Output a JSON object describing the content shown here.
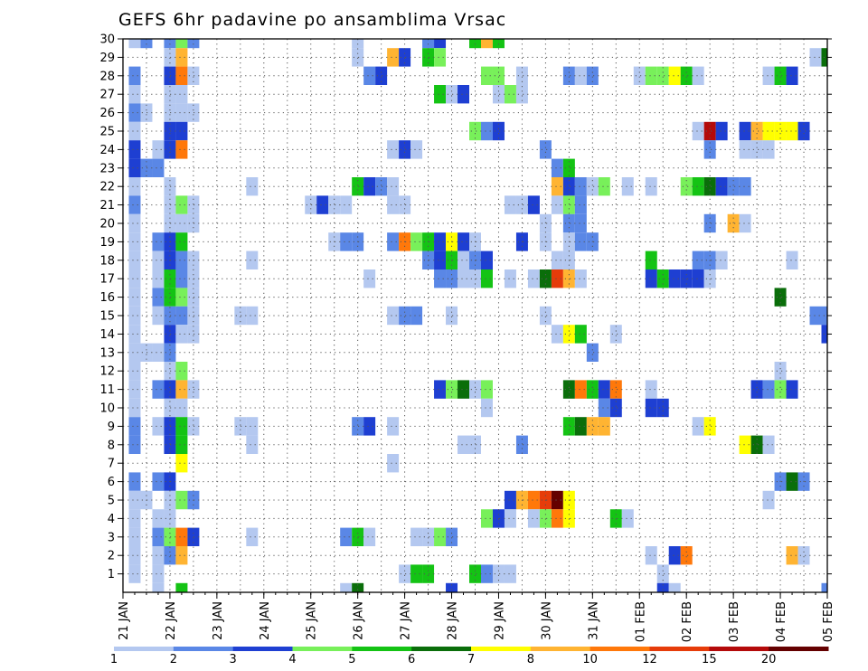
{
  "chart_data": {
    "type": "heatmap",
    "title": "GEFS 6hr padavine po ansamblima Vrsac",
    "xlabel": "",
    "ylabel": "",
    "x_tick_labels": [
      "21 JAN",
      "22 JAN",
      "23 JAN",
      "24 JAN",
      "25 JAN",
      "26 JAN",
      "27 JAN",
      "28 JAN",
      "29 JAN",
      "30 JAN",
      "31 JAN",
      "01 FEB",
      "02 FEB",
      "03 FEB",
      "04 FEB",
      "05 FEB"
    ],
    "y_tick_labels": [
      "1",
      "2",
      "3",
      "4",
      "5",
      "6",
      "7",
      "8",
      "9",
      "10",
      "11",
      "12",
      "13",
      "14",
      "15",
      "16",
      "17",
      "18",
      "19",
      "20",
      "21",
      "22",
      "23",
      "24",
      "25",
      "26",
      "27",
      "28",
      "29",
      "30"
    ],
    "x_range_steps": [
      0,
      60
    ],
    "y_range_members": [
      0,
      30
    ],
    "grid": true,
    "colorbar": {
      "levels": [
        "1",
        "2",
        "3",
        "4",
        "5",
        "6",
        "7",
        "8",
        "10",
        "12",
        "15",
        "20"
      ],
      "colors": [
        "#b4c8f0",
        "#5a87e6",
        "#1e3fd2",
        "#78f05a",
        "#14c314",
        "#0a6e0a",
        "#ffff00",
        "#ffb432",
        "#ff780a",
        "#e63c0a",
        "#b40a0a",
        "#640000"
      ]
    },
    "cells_format": "[member, time_step, class_index]",
    "cells": [
      [
        30,
        1,
        0
      ],
      [
        30,
        2,
        1
      ],
      [
        30,
        4,
        1
      ],
      [
        30,
        5,
        3
      ],
      [
        30,
        6,
        1
      ],
      [
        30,
        20,
        0
      ],
      [
        30,
        26,
        1
      ],
      [
        30,
        27,
        2
      ],
      [
        30,
        30,
        4
      ],
      [
        30,
        31,
        7
      ],
      [
        30,
        32,
        4
      ],
      [
        29,
        4,
        0
      ],
      [
        29,
        5,
        7
      ],
      [
        29,
        20,
        0
      ],
      [
        29,
        23,
        7
      ],
      [
        29,
        24,
        2
      ],
      [
        29,
        26,
        4
      ],
      [
        29,
        27,
        3
      ],
      [
        29,
        59,
        0
      ],
      [
        29,
        60,
        5
      ],
      [
        28,
        1,
        1
      ],
      [
        28,
        4,
        2
      ],
      [
        28,
        5,
        8
      ],
      [
        28,
        6,
        0
      ],
      [
        28,
        21,
        1
      ],
      [
        28,
        22,
        2
      ],
      [
        28,
        31,
        3
      ],
      [
        28,
        32,
        3
      ],
      [
        28,
        34,
        0
      ],
      [
        28,
        38,
        1
      ],
      [
        28,
        39,
        0
      ],
      [
        28,
        40,
        1
      ],
      [
        28,
        44,
        0
      ],
      [
        28,
        45,
        3
      ],
      [
        28,
        46,
        3
      ],
      [
        28,
        47,
        6
      ],
      [
        28,
        48,
        4
      ],
      [
        28,
        49,
        0
      ],
      [
        28,
        55,
        0
      ],
      [
        28,
        56,
        4
      ],
      [
        28,
        57,
        2
      ],
      [
        27,
        1,
        0
      ],
      [
        27,
        4,
        0
      ],
      [
        27,
        5,
        0
      ],
      [
        27,
        27,
        4
      ],
      [
        27,
        28,
        0
      ],
      [
        27,
        29,
        2
      ],
      [
        27,
        32,
        0
      ],
      [
        27,
        33,
        3
      ],
      [
        27,
        34,
        0
      ],
      [
        26,
        1,
        1
      ],
      [
        26,
        2,
        0
      ],
      [
        26,
        4,
        0
      ],
      [
        26,
        5,
        0
      ],
      [
        26,
        6,
        0
      ],
      [
        25,
        1,
        0
      ],
      [
        25,
        4,
        2
      ],
      [
        25,
        5,
        2
      ],
      [
        25,
        30,
        3
      ],
      [
        25,
        31,
        1
      ],
      [
        25,
        32,
        2
      ],
      [
        25,
        49,
        0
      ],
      [
        25,
        50,
        10
      ],
      [
        25,
        51,
        2
      ],
      [
        25,
        53,
        2
      ],
      [
        25,
        54,
        7
      ],
      [
        25,
        55,
        6
      ],
      [
        25,
        56,
        6
      ],
      [
        25,
        57,
        6
      ],
      [
        25,
        58,
        2
      ],
      [
        24,
        1,
        2
      ],
      [
        24,
        3,
        0
      ],
      [
        24,
        4,
        2
      ],
      [
        24,
        5,
        8
      ],
      [
        24,
        23,
        0
      ],
      [
        24,
        24,
        2
      ],
      [
        24,
        25,
        0
      ],
      [
        24,
        36,
        1
      ],
      [
        24,
        50,
        1
      ],
      [
        24,
        53,
        0
      ],
      [
        24,
        54,
        0
      ],
      [
        24,
        55,
        0
      ],
      [
        23,
        1,
        2
      ],
      [
        23,
        2,
        1
      ],
      [
        23,
        3,
        1
      ],
      [
        23,
        37,
        1
      ],
      [
        23,
        38,
        4
      ],
      [
        22,
        1,
        0
      ],
      [
        22,
        4,
        0
      ],
      [
        22,
        11,
        0
      ],
      [
        22,
        20,
        4
      ],
      [
        22,
        21,
        2
      ],
      [
        22,
        22,
        1
      ],
      [
        22,
        23,
        0
      ],
      [
        22,
        37,
        7
      ],
      [
        22,
        38,
        2
      ],
      [
        22,
        39,
        1
      ],
      [
        22,
        40,
        0
      ],
      [
        22,
        41,
        3
      ],
      [
        22,
        43,
        0
      ],
      [
        22,
        45,
        0
      ],
      [
        22,
        48,
        3
      ],
      [
        22,
        49,
        4
      ],
      [
        22,
        50,
        5
      ],
      [
        22,
        51,
        2
      ],
      [
        22,
        52,
        1
      ],
      [
        22,
        53,
        1
      ],
      [
        21,
        1,
        1
      ],
      [
        21,
        4,
        0
      ],
      [
        21,
        5,
        3
      ],
      [
        21,
        6,
        0
      ],
      [
        21,
        16,
        0
      ],
      [
        21,
        17,
        2
      ],
      [
        21,
        18,
        0
      ],
      [
        21,
        19,
        0
      ],
      [
        21,
        23,
        0
      ],
      [
        21,
        24,
        0
      ],
      [
        21,
        33,
        0
      ],
      [
        21,
        34,
        0
      ],
      [
        21,
        35,
        2
      ],
      [
        21,
        37,
        0
      ],
      [
        21,
        38,
        3
      ],
      [
        21,
        39,
        1
      ],
      [
        20,
        1,
        0
      ],
      [
        20,
        4,
        0
      ],
      [
        20,
        5,
        0
      ],
      [
        20,
        6,
        0
      ],
      [
        20,
        36,
        0
      ],
      [
        20,
        38,
        1
      ],
      [
        20,
        39,
        1
      ],
      [
        20,
        50,
        1
      ],
      [
        20,
        52,
        7
      ],
      [
        20,
        53,
        0
      ],
      [
        19,
        1,
        0
      ],
      [
        19,
        3,
        1
      ],
      [
        19,
        4,
        2
      ],
      [
        19,
        5,
        4
      ],
      [
        19,
        18,
        0
      ],
      [
        19,
        19,
        1
      ],
      [
        19,
        20,
        1
      ],
      [
        19,
        23,
        1
      ],
      [
        19,
        24,
        8
      ],
      [
        19,
        25,
        3
      ],
      [
        19,
        26,
        4
      ],
      [
        19,
        27,
        2
      ],
      [
        19,
        28,
        6
      ],
      [
        19,
        29,
        2
      ],
      [
        19,
        30,
        0
      ],
      [
        19,
        34,
        2
      ],
      [
        19,
        36,
        0
      ],
      [
        19,
        38,
        0
      ],
      [
        19,
        39,
        1
      ],
      [
        19,
        40,
        1
      ],
      [
        18,
        1,
        0
      ],
      [
        18,
        3,
        0
      ],
      [
        18,
        4,
        2
      ],
      [
        18,
        5,
        1
      ],
      [
        18,
        6,
        0
      ],
      [
        18,
        11,
        0
      ],
      [
        18,
        26,
        1
      ],
      [
        18,
        27,
        2
      ],
      [
        18,
        28,
        4
      ],
      [
        18,
        29,
        0
      ],
      [
        18,
        30,
        1
      ],
      [
        18,
        31,
        2
      ],
      [
        18,
        37,
        0
      ],
      [
        18,
        38,
        0
      ],
      [
        18,
        45,
        4
      ],
      [
        18,
        49,
        1
      ],
      [
        18,
        50,
        1
      ],
      [
        18,
        51,
        0
      ],
      [
        18,
        57,
        0
      ],
      [
        17,
        1,
        0
      ],
      [
        17,
        3,
        0
      ],
      [
        17,
        4,
        4
      ],
      [
        17,
        5,
        1
      ],
      [
        17,
        6,
        0
      ],
      [
        17,
        21,
        0
      ],
      [
        17,
        27,
        1
      ],
      [
        17,
        28,
        1
      ],
      [
        17,
        29,
        0
      ],
      [
        17,
        30,
        0
      ],
      [
        17,
        31,
        4
      ],
      [
        17,
        33,
        0
      ],
      [
        17,
        35,
        0
      ],
      [
        17,
        36,
        5
      ],
      [
        17,
        37,
        9
      ],
      [
        17,
        38,
        7
      ],
      [
        17,
        39,
        0
      ],
      [
        17,
        45,
        2
      ],
      [
        17,
        46,
        4
      ],
      [
        17,
        47,
        2
      ],
      [
        17,
        48,
        2
      ],
      [
        17,
        49,
        2
      ],
      [
        17,
        50,
        0
      ],
      [
        16,
        1,
        0
      ],
      [
        16,
        3,
        1
      ],
      [
        16,
        4,
        4
      ],
      [
        16,
        5,
        3
      ],
      [
        16,
        6,
        0
      ],
      [
        16,
        56,
        5
      ],
      [
        15,
        1,
        0
      ],
      [
        15,
        3,
        0
      ],
      [
        15,
        4,
        1
      ],
      [
        15,
        5,
        1
      ],
      [
        15,
        6,
        0
      ],
      [
        15,
        10,
        0
      ],
      [
        15,
        11,
        0
      ],
      [
        15,
        23,
        0
      ],
      [
        15,
        24,
        1
      ],
      [
        15,
        25,
        1
      ],
      [
        15,
        28,
        0
      ],
      [
        15,
        36,
        0
      ],
      [
        15,
        59,
        1
      ],
      [
        15,
        60,
        1
      ],
      [
        14,
        1,
        0
      ],
      [
        14,
        4,
        2
      ],
      [
        14,
        5,
        0
      ],
      [
        14,
        6,
        0
      ],
      [
        14,
        37,
        0
      ],
      [
        14,
        38,
        6
      ],
      [
        14,
        39,
        4
      ],
      [
        14,
        42,
        0
      ],
      [
        14,
        60,
        2
      ],
      [
        13,
        1,
        0
      ],
      [
        13,
        2,
        0
      ],
      [
        13,
        3,
        0
      ],
      [
        13,
        4,
        1
      ],
      [
        13,
        40,
        1
      ],
      [
        12,
        1,
        0
      ],
      [
        12,
        4,
        0
      ],
      [
        12,
        5,
        3
      ],
      [
        12,
        56,
        0
      ],
      [
        11,
        1,
        0
      ],
      [
        11,
        3,
        1
      ],
      [
        11,
        4,
        2
      ],
      [
        11,
        5,
        7
      ],
      [
        11,
        6,
        0
      ],
      [
        11,
        27,
        2
      ],
      [
        11,
        28,
        3
      ],
      [
        11,
        29,
        5
      ],
      [
        11,
        30,
        0
      ],
      [
        11,
        31,
        3
      ],
      [
        11,
        38,
        5
      ],
      [
        11,
        39,
        8
      ],
      [
        11,
        40,
        4
      ],
      [
        11,
        41,
        2
      ],
      [
        11,
        42,
        8
      ],
      [
        11,
        45,
        0
      ],
      [
        11,
        54,
        2
      ],
      [
        11,
        55,
        1
      ],
      [
        11,
        56,
        3
      ],
      [
        11,
        57,
        2
      ],
      [
        10,
        1,
        0
      ],
      [
        10,
        4,
        0
      ],
      [
        10,
        5,
        0
      ],
      [
        10,
        31,
        0
      ],
      [
        10,
        41,
        1
      ],
      [
        10,
        42,
        2
      ],
      [
        10,
        45,
        2
      ],
      [
        10,
        46,
        2
      ],
      [
        9,
        1,
        1
      ],
      [
        9,
        3,
        0
      ],
      [
        9,
        4,
        2
      ],
      [
        9,
        5,
        4
      ],
      [
        9,
        6,
        0
      ],
      [
        9,
        10,
        0
      ],
      [
        9,
        11,
        0
      ],
      [
        9,
        20,
        1
      ],
      [
        9,
        21,
        2
      ],
      [
        9,
        23,
        0
      ],
      [
        9,
        38,
        4
      ],
      [
        9,
        39,
        5
      ],
      [
        9,
        40,
        7
      ],
      [
        9,
        41,
        7
      ],
      [
        9,
        49,
        0
      ],
      [
        9,
        50,
        6
      ],
      [
        8,
        1,
        1
      ],
      [
        8,
        4,
        2
      ],
      [
        8,
        5,
        4
      ],
      [
        8,
        11,
        0
      ],
      [
        8,
        29,
        0
      ],
      [
        8,
        30,
        0
      ],
      [
        8,
        34,
        1
      ],
      [
        8,
        53,
        6
      ],
      [
        8,
        54,
        5
      ],
      [
        8,
        55,
        0
      ],
      [
        7,
        5,
        6
      ],
      [
        7,
        23,
        0
      ],
      [
        6,
        1,
        1
      ],
      [
        6,
        3,
        1
      ],
      [
        6,
        4,
        2
      ],
      [
        6,
        56,
        1
      ],
      [
        6,
        57,
        5
      ],
      [
        6,
        58,
        1
      ],
      [
        5,
        1,
        0
      ],
      [
        5,
        2,
        0
      ],
      [
        5,
        4,
        0
      ],
      [
        5,
        5,
        3
      ],
      [
        5,
        6,
        1
      ],
      [
        5,
        33,
        2
      ],
      [
        5,
        34,
        7
      ],
      [
        5,
        35,
        8
      ],
      [
        5,
        36,
        9
      ],
      [
        5,
        37,
        11
      ],
      [
        5,
        38,
        6
      ],
      [
        5,
        55,
        0
      ],
      [
        4,
        1,
        0
      ],
      [
        4,
        3,
        0
      ],
      [
        4,
        4,
        0
      ],
      [
        4,
        31,
        3
      ],
      [
        4,
        32,
        2
      ],
      [
        4,
        33,
        0
      ],
      [
        4,
        35,
        0
      ],
      [
        4,
        36,
        3
      ],
      [
        4,
        37,
        8
      ],
      [
        4,
        38,
        6
      ],
      [
        4,
        42,
        4
      ],
      [
        4,
        43,
        0
      ],
      [
        3,
        1,
        0
      ],
      [
        3,
        3,
        1
      ],
      [
        3,
        4,
        3
      ],
      [
        3,
        5,
        8
      ],
      [
        3,
        6,
        2
      ],
      [
        3,
        11,
        0
      ],
      [
        3,
        19,
        1
      ],
      [
        3,
        20,
        4
      ],
      [
        3,
        21,
        0
      ],
      [
        3,
        25,
        0
      ],
      [
        3,
        26,
        0
      ],
      [
        3,
        27,
        3
      ],
      [
        3,
        28,
        1
      ],
      [
        2,
        1,
        0
      ],
      [
        2,
        3,
        0
      ],
      [
        2,
        4,
        1
      ],
      [
        2,
        5,
        7
      ],
      [
        2,
        45,
        0
      ],
      [
        2,
        47,
        2
      ],
      [
        2,
        48,
        8
      ],
      [
        2,
        57,
        7
      ],
      [
        2,
        58,
        0
      ],
      [
        1,
        1,
        0
      ],
      [
        1,
        3,
        0
      ],
      [
        1,
        24,
        0
      ],
      [
        1,
        25,
        4
      ],
      [
        1,
        26,
        4
      ],
      [
        1,
        30,
        4
      ],
      [
        1,
        31,
        1
      ],
      [
        1,
        32,
        0
      ],
      [
        1,
        33,
        0
      ],
      [
        1,
        46,
        0
      ],
      [
        0,
        3,
        0
      ],
      [
        0,
        5,
        4
      ],
      [
        0,
        19,
        0
      ],
      [
        0,
        20,
        5
      ],
      [
        0,
        28,
        2
      ],
      [
        0,
        46,
        2
      ],
      [
        0,
        47,
        0
      ],
      [
        0,
        60,
        1
      ]
    ]
  }
}
